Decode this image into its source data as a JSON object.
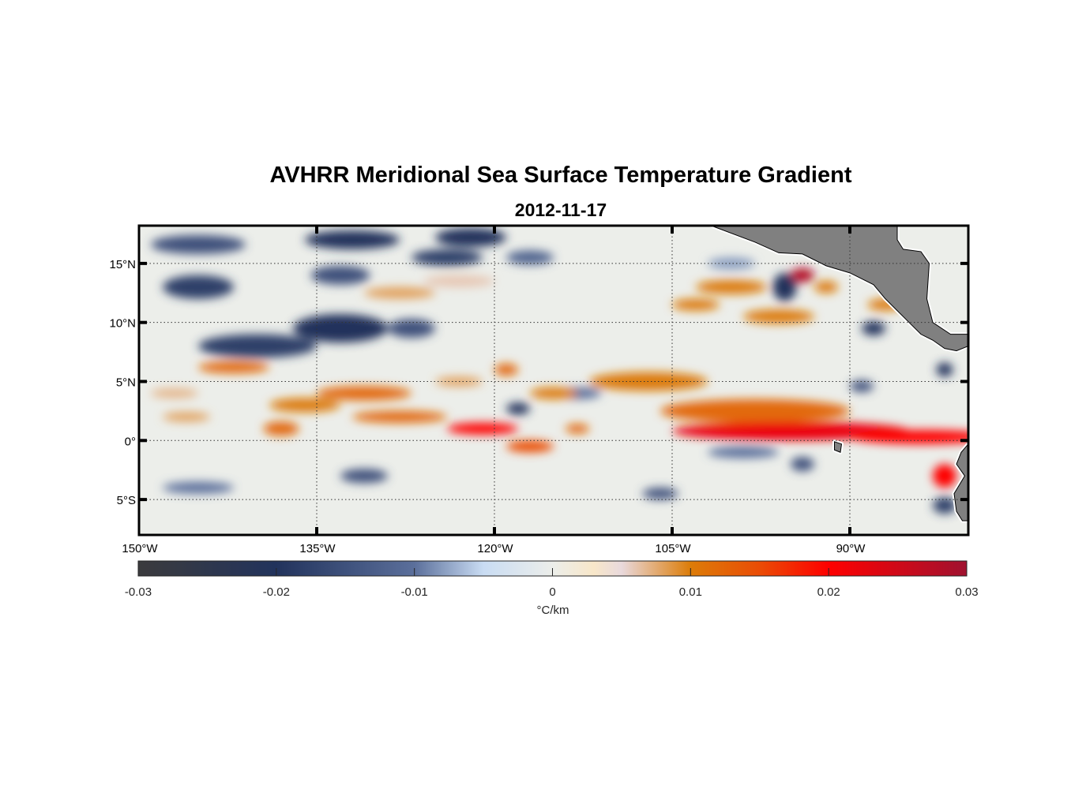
{
  "chart_data": {
    "type": "heatmap",
    "title": "AVHRR Meridional Sea Surface Temperature Gradient",
    "subtitle": "2012-11-17",
    "xlim": [
      -150,
      -80
    ],
    "ylim": [
      -8,
      18.2
    ],
    "x_ticks": [
      {
        "value": -150,
        "label": "150°W"
      },
      {
        "value": -135,
        "label": "135°W"
      },
      {
        "value": -120,
        "label": "120°W"
      },
      {
        "value": -105,
        "label": "105°W"
      },
      {
        "value": -90,
        "label": "90°W"
      }
    ],
    "y_ticks": [
      {
        "value": 15,
        "label": "15°N"
      },
      {
        "value": 10,
        "label": "10°N"
      },
      {
        "value": 5,
        "label": "5°N"
      },
      {
        "value": 0,
        "label": "0°"
      },
      {
        "value": -5,
        "label": "5°S"
      }
    ],
    "grid": true,
    "colorbar": {
      "label": "°C/km",
      "range": [
        -0.03,
        0.03
      ],
      "ticks": [
        {
          "value": -0.03,
          "label": "-0.03"
        },
        {
          "value": -0.02,
          "label": "-0.02"
        },
        {
          "value": -0.01,
          "label": "-0.01"
        },
        {
          "value": 0,
          "label": "0"
        },
        {
          "value": 0.01,
          "label": "0.01"
        },
        {
          "value": 0.02,
          "label": "0.02"
        },
        {
          "value": 0.03,
          "label": "0.03"
        }
      ],
      "colormap": [
        [
          -0.03,
          "#3b3b3d"
        ],
        [
          -0.02,
          "#22335c"
        ],
        [
          -0.01,
          "#5b6f9b"
        ],
        [
          -0.005,
          "#c9dcf3"
        ],
        [
          0,
          "#eceeea"
        ],
        [
          0.003,
          "#f8e7c9"
        ],
        [
          0.005,
          "#e9d9dc"
        ],
        [
          0.01,
          "#dc7c08"
        ],
        [
          0.015,
          "#ea4c05"
        ],
        [
          0.02,
          "#fe0000"
        ],
        [
          0.03,
          "#a01230"
        ]
      ]
    },
    "features": [
      {
        "lon": -145,
        "lat": 16.6,
        "dlon": 4,
        "dlat": 0.8,
        "value": -0.015
      },
      {
        "lon": -132,
        "lat": 17.0,
        "dlon": 4,
        "dlat": 0.8,
        "value": -0.02
      },
      {
        "lon": -122,
        "lat": 17.2,
        "dlon": 3,
        "dlat": 0.8,
        "value": -0.02
      },
      {
        "lon": -124,
        "lat": 15.5,
        "dlon": 3,
        "dlat": 0.7,
        "value": -0.018
      },
      {
        "lon": -145,
        "lat": 13.0,
        "dlon": 3,
        "dlat": 1.0,
        "value": -0.018
      },
      {
        "lon": -133,
        "lat": 14.0,
        "dlon": 2.5,
        "dlat": 0.8,
        "value": -0.015
      },
      {
        "lon": -140,
        "lat": 8.0,
        "dlon": 5,
        "dlat": 1.0,
        "value": -0.018
      },
      {
        "lon": -133,
        "lat": 9.5,
        "dlon": 4,
        "dlat": 1.2,
        "value": -0.02
      },
      {
        "lon": -127,
        "lat": 9.5,
        "dlon": 2,
        "dlat": 0.8,
        "value": -0.015
      },
      {
        "lon": -117,
        "lat": 15.5,
        "dlon": 2,
        "dlat": 0.6,
        "value": -0.012
      },
      {
        "lon": -95.5,
        "lat": 13.0,
        "dlon": 1,
        "dlat": 1.2,
        "value": -0.02
      },
      {
        "lon": -88,
        "lat": 9.5,
        "dlon": 1,
        "dlat": 0.6,
        "value": -0.02
      },
      {
        "lon": -89,
        "lat": 4.6,
        "dlon": 1,
        "dlat": 0.5,
        "value": -0.015
      },
      {
        "lon": -118,
        "lat": 2.7,
        "dlon": 1,
        "dlat": 0.5,
        "value": -0.02
      },
      {
        "lon": -131,
        "lat": -3.0,
        "dlon": 2,
        "dlat": 0.6,
        "value": -0.015
      },
      {
        "lon": -106,
        "lat": -4.5,
        "dlon": 1.5,
        "dlat": 0.5,
        "value": -0.015
      },
      {
        "lon": -94,
        "lat": -2.0,
        "dlon": 1,
        "dlat": 0.6,
        "value": -0.015
      },
      {
        "lon": -82,
        "lat": -5.5,
        "dlon": 1,
        "dlat": 0.7,
        "value": -0.018
      },
      {
        "lon": -82,
        "lat": 6.0,
        "dlon": 0.7,
        "dlat": 0.6,
        "value": -0.02
      },
      {
        "lon": -99,
        "lat": -1.0,
        "dlon": 3,
        "dlat": 0.5,
        "value": -0.01
      },
      {
        "lon": -145,
        "lat": -4.0,
        "dlon": 3,
        "dlat": 0.5,
        "value": -0.01
      },
      {
        "lon": -113,
        "lat": 4.0,
        "dlon": 2,
        "dlat": 0.5,
        "value": -0.01
      },
      {
        "lon": -100,
        "lat": 15.0,
        "dlon": 2,
        "dlat": 0.5,
        "value": -0.008
      },
      {
        "lon": -142,
        "lat": 6.2,
        "dlon": 3,
        "dlat": 0.5,
        "value": 0.012
      },
      {
        "lon": -136,
        "lat": 3.0,
        "dlon": 3,
        "dlat": 0.6,
        "value": 0.01
      },
      {
        "lon": -138,
        "lat": 1.0,
        "dlon": 1.5,
        "dlat": 0.6,
        "value": 0.012
      },
      {
        "lon": -131,
        "lat": 4.0,
        "dlon": 4,
        "dlat": 0.6,
        "value": 0.012
      },
      {
        "lon": -128,
        "lat": 2.0,
        "dlon": 4,
        "dlat": 0.5,
        "value": 0.012
      },
      {
        "lon": -121,
        "lat": 1.0,
        "dlon": 3,
        "dlat": 0.5,
        "value": 0.02
      },
      {
        "lon": -115,
        "lat": 4.0,
        "dlon": 2,
        "dlat": 0.5,
        "value": 0.01
      },
      {
        "lon": -119,
        "lat": 6.0,
        "dlon": 1,
        "dlat": 0.5,
        "value": 0.012
      },
      {
        "lon": -117,
        "lat": -0.5,
        "dlon": 2,
        "dlat": 0.5,
        "value": 0.015
      },
      {
        "lon": -107,
        "lat": 5.0,
        "dlon": 5,
        "dlat": 0.8,
        "value": 0.01
      },
      {
        "lon": -98,
        "lat": 2.5,
        "dlon": 8,
        "dlat": 1.0,
        "value": 0.012
      },
      {
        "lon": -95,
        "lat": 0.8,
        "dlon": 10,
        "dlat": 0.8,
        "value": 0.022
      },
      {
        "lon": -84,
        "lat": 0.3,
        "dlon": 6,
        "dlat": 0.6,
        "value": 0.02
      },
      {
        "lon": -100,
        "lat": 13.0,
        "dlon": 3,
        "dlat": 0.6,
        "value": 0.01
      },
      {
        "lon": -103,
        "lat": 11.5,
        "dlon": 2,
        "dlat": 0.5,
        "value": 0.01
      },
      {
        "lon": -94,
        "lat": 14.0,
        "dlon": 1,
        "dlat": 0.6,
        "value": 0.028
      },
      {
        "lon": -92,
        "lat": 13.0,
        "dlon": 1,
        "dlat": 0.5,
        "value": 0.01
      },
      {
        "lon": -96,
        "lat": 10.5,
        "dlon": 3,
        "dlat": 0.6,
        "value": 0.01
      },
      {
        "lon": -87,
        "lat": 11.5,
        "dlon": 1.5,
        "dlat": 0.5,
        "value": 0.01
      },
      {
        "lon": -128,
        "lat": 12.5,
        "dlon": 3,
        "dlat": 0.5,
        "value": 0.008
      },
      {
        "lon": -123,
        "lat": 13.5,
        "dlon": 3,
        "dlat": 0.5,
        "value": 0.006
      },
      {
        "lon": -113,
        "lat": 1.0,
        "dlon": 1,
        "dlat": 0.4,
        "value": 0.012
      },
      {
        "lon": -82,
        "lat": -3.0,
        "dlon": 1,
        "dlat": 1.0,
        "value": 0.02
      },
      {
        "lon": -146,
        "lat": 2.0,
        "dlon": 2,
        "dlat": 0.4,
        "value": 0.008
      },
      {
        "lon": -123,
        "lat": 5.0,
        "dlon": 2,
        "dlat": 0.4,
        "value": 0.008
      },
      {
        "lon": -147,
        "lat": 4.0,
        "dlon": 2,
        "dlat": 0.4,
        "value": 0.007
      }
    ],
    "land": [
      [
        [
          -101.7,
          18.2
        ],
        [
          -98,
          16.8
        ],
        [
          -96,
          15.9
        ],
        [
          -94,
          15.8
        ],
        [
          -92,
          14.8
        ],
        [
          -90,
          14.2
        ],
        [
          -88,
          13.2
        ],
        [
          -87,
          12
        ],
        [
          -86,
          11
        ],
        [
          -85,
          10
        ],
        [
          -84,
          9
        ],
        [
          -83,
          8.5
        ],
        [
          -82,
          7.8
        ],
        [
          -81,
          7.6
        ],
        [
          -80,
          8
        ],
        [
          -80,
          9
        ],
        [
          -81.5,
          9
        ],
        [
          -83,
          10
        ],
        [
          -83.5,
          12
        ],
        [
          -83.3,
          15
        ],
        [
          -84,
          16
        ],
        [
          -85.5,
          16.2
        ],
        [
          -86,
          17
        ],
        [
          -86,
          18.2
        ]
      ],
      [
        [
          -80,
          -0.3
        ],
        [
          -80.6,
          -1
        ],
        [
          -81,
          -2
        ],
        [
          -80.3,
          -3
        ],
        [
          -81.2,
          -4.5
        ],
        [
          -81,
          -6
        ],
        [
          -80.5,
          -6.8
        ],
        [
          -80,
          -6.8
        ]
      ],
      [
        [
          -91.3,
          -0.1
        ],
        [
          -90.7,
          -0.3
        ],
        [
          -90.8,
          -1
        ],
        [
          -91.3,
          -0.8
        ]
      ]
    ]
  }
}
